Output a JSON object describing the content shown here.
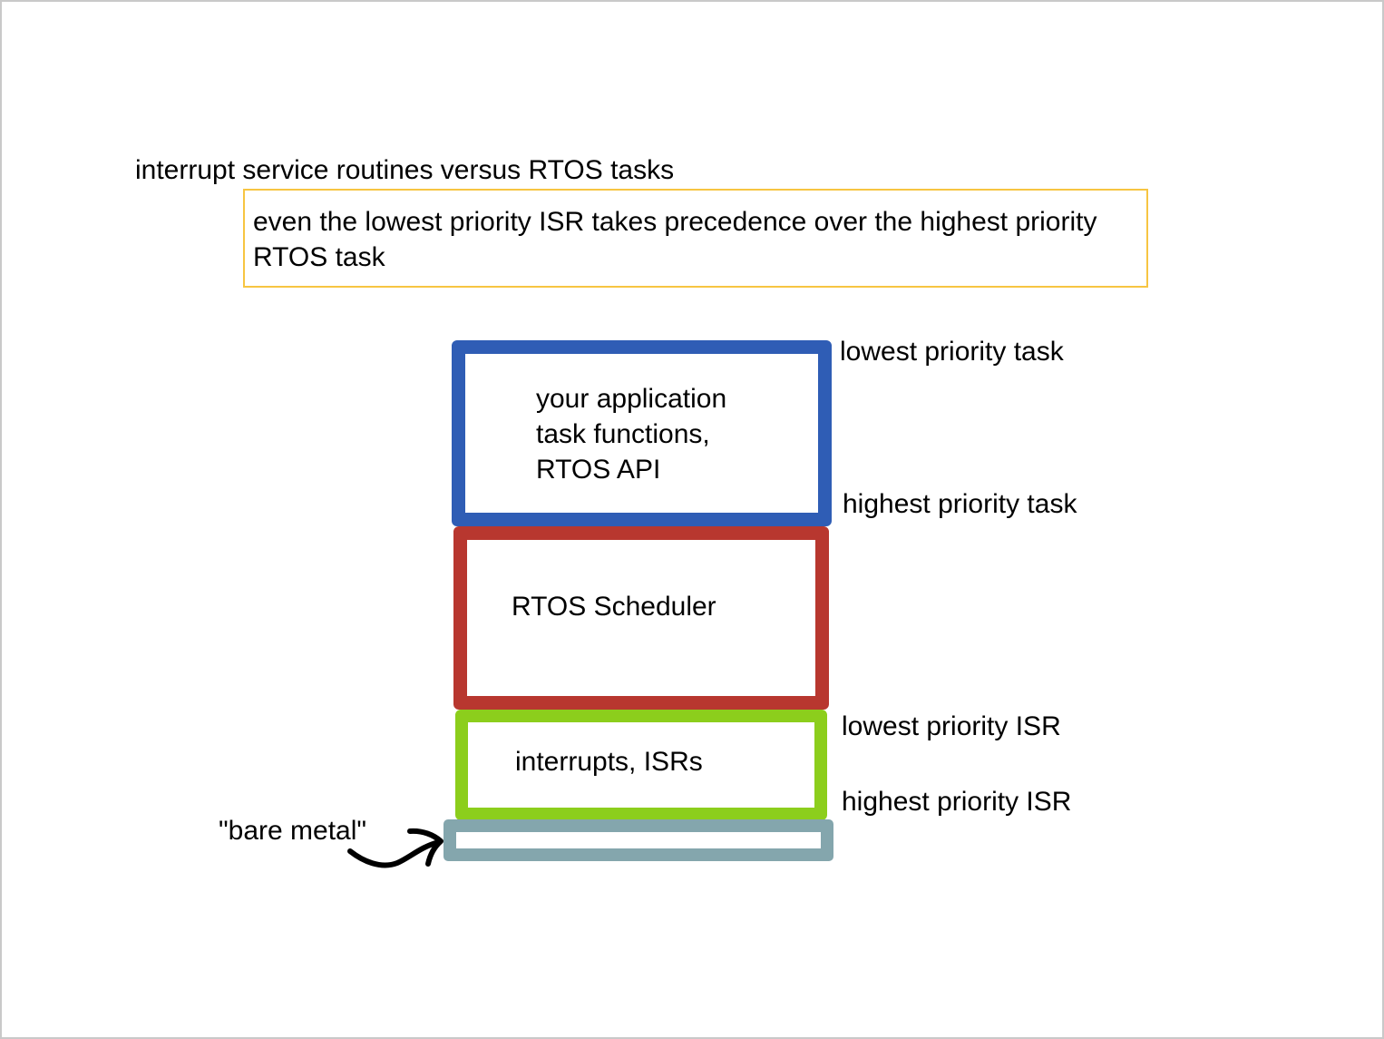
{
  "diagram": {
    "title": "interrupt service routines versus RTOS tasks",
    "note": "even the lowest priority ISR takes precedence over the highest priority RTOS task",
    "layers": {
      "application": {
        "lines": [
          "your application",
          "task functions,",
          "RTOS API"
        ],
        "color": "#2f5db5",
        "top_label": "lowest priority task",
        "bottom_label": "highest priority task"
      },
      "scheduler": {
        "label": "RTOS Scheduler",
        "color": "#b8372f"
      },
      "interrupts": {
        "label": "interrupts, ISRs",
        "color": "#8cce1c",
        "top_label": "lowest priority ISR",
        "bottom_label": "highest priority ISR"
      },
      "bare_metal": {
        "label": "\"bare metal\"",
        "color": "#84a6ad"
      }
    },
    "note_border_color": "#f7c542"
  }
}
